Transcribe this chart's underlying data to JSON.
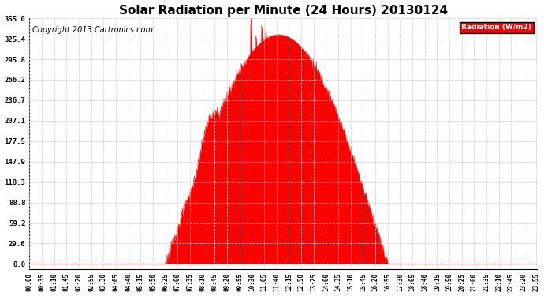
{
  "title": "Solar Radiation per Minute (24 Hours) 20130124",
  "copyright": "Copyright 2013 Cartronics.com",
  "legend_label": "Radiation (W/m2)",
  "yticks": [
    0.0,
    29.6,
    59.2,
    88.8,
    118.3,
    147.9,
    177.5,
    207.1,
    236.7,
    266.2,
    295.8,
    325.4,
    355.0
  ],
  "ymax": 355.0,
  "fill_color": "#FF0000",
  "legend_bg": "#FF0000",
  "legend_text_color": "#FFFFFF",
  "grid_color": "#AAAAAA",
  "background_color": "#FFFFFF",
  "title_fontsize": 11,
  "copyright_fontsize": 7,
  "sunrise_min": 385,
  "sunset_min": 1015,
  "peak_min": 760,
  "figwidth": 6.9,
  "figheight": 3.75,
  "dpi": 100
}
